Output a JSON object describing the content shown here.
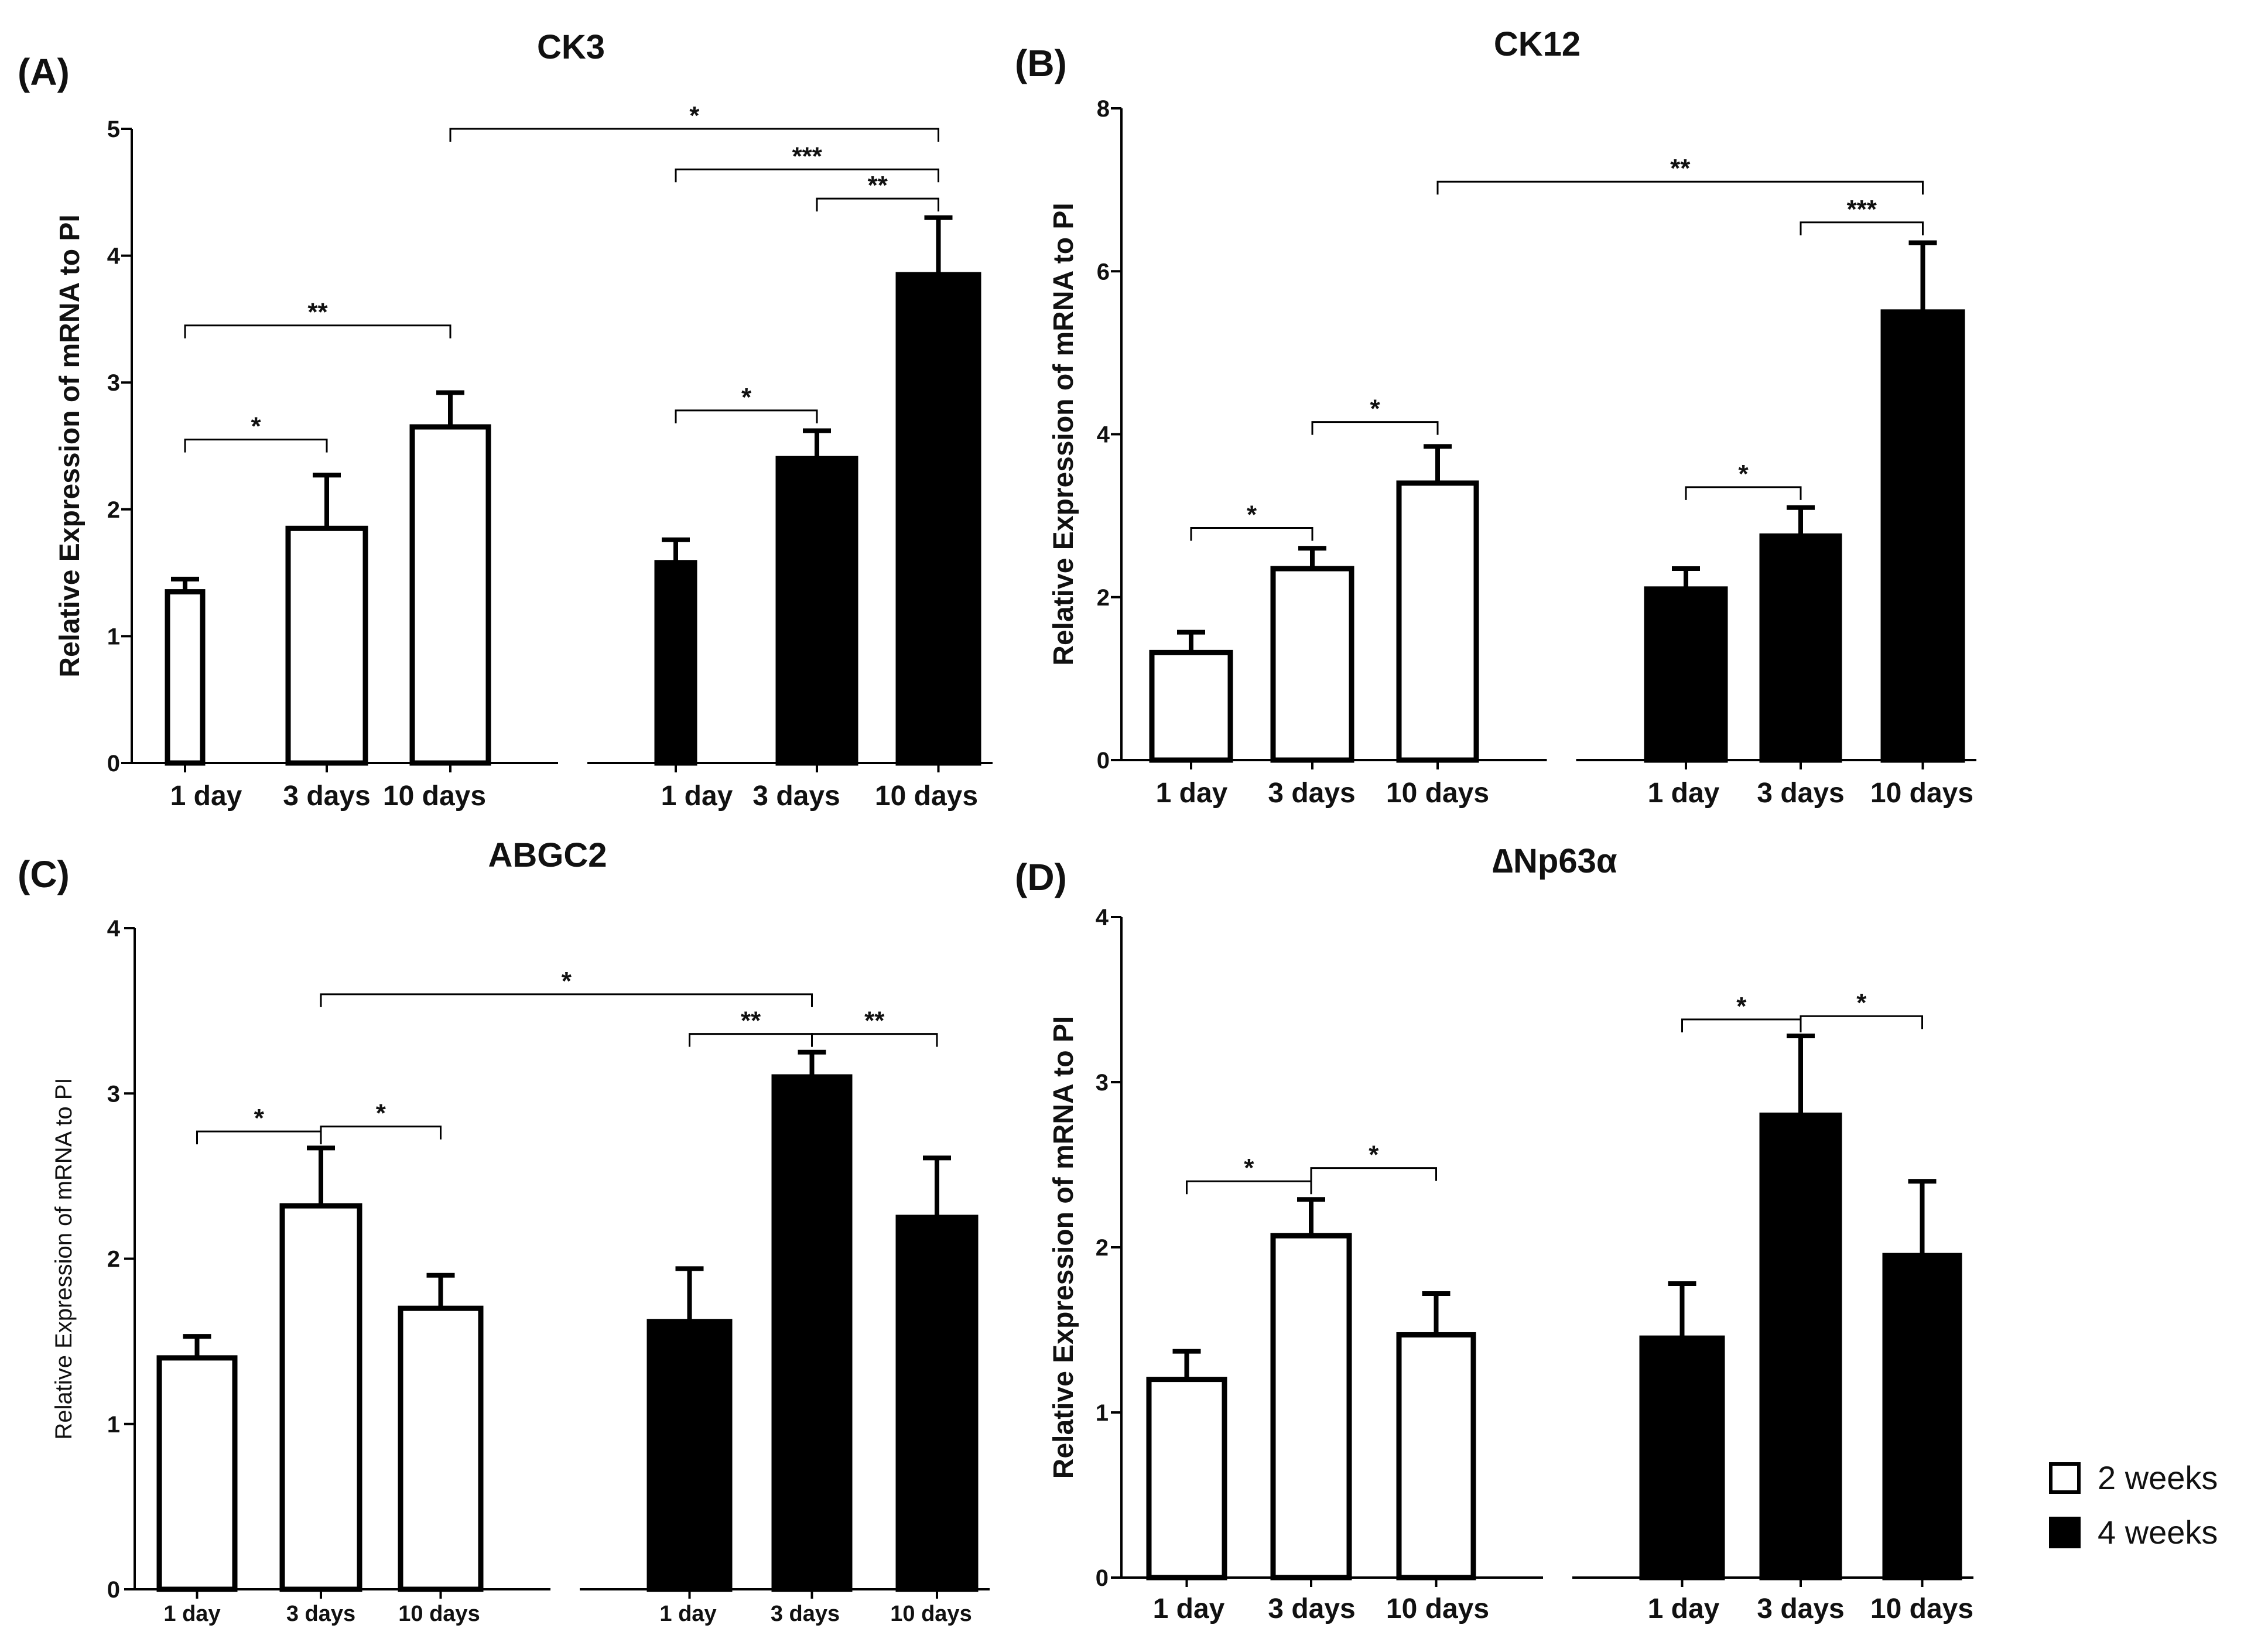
{
  "colors": {
    "two_weeks": "#ffffff",
    "four_weeks": "#000000",
    "stroke": "#000000"
  },
  "legend": [
    {
      "label": "2 weeks",
      "color": "#ffffff"
    },
    {
      "label": "4 weeks",
      "color": "#000000"
    }
  ],
  "chart_data": [
    {
      "panel": "(A)",
      "type": "bar",
      "title": "CK3",
      "ylabel": "Relative Expression of mRNA to PI",
      "xlabel": "",
      "ylim": [
        0,
        5
      ],
      "yticks": [
        0,
        1,
        2,
        3,
        4,
        5
      ],
      "categories": [
        "1 day",
        "3 days",
        "10 days"
      ],
      "series": [
        {
          "name": "2 weeks",
          "values": [
            1.35,
            1.85,
            2.65
          ],
          "errors": [
            0.1,
            0.42,
            0.27
          ]
        },
        {
          "name": "4 weeks",
          "values": [
            1.58,
            2.4,
            3.85
          ],
          "errors": [
            0.18,
            0.22,
            0.45
          ]
        }
      ],
      "significance": [
        {
          "from": [
            0,
            0
          ],
          "to": [
            0,
            2
          ],
          "label": "**",
          "level": 3.45
        },
        {
          "from": [
            0,
            0
          ],
          "to": [
            0,
            1
          ],
          "label": "*",
          "level": 2.55
        },
        {
          "from": [
            0,
            2
          ],
          "to": [
            1,
            2
          ],
          "label": "*",
          "level": 5.0
        },
        {
          "from": [
            1,
            0
          ],
          "to": [
            1,
            2
          ],
          "label": "***",
          "level": 4.68
        },
        {
          "from": [
            1,
            1
          ],
          "to": [
            1,
            2
          ],
          "label": "**",
          "level": 4.45
        },
        {
          "from": [
            1,
            0
          ],
          "to": [
            1,
            1
          ],
          "label": "*",
          "level": 2.78
        }
      ]
    },
    {
      "panel": "(B)",
      "type": "bar",
      "title": "CK12",
      "ylabel": "Relative Expression of mRNA to PI",
      "xlabel": "",
      "ylim": [
        0,
        8
      ],
      "yticks": [
        0,
        2,
        4,
        6,
        8
      ],
      "categories": [
        "1 day",
        "3 days",
        "10 days"
      ],
      "series": [
        {
          "name": "2 weeks",
          "values": [
            1.32,
            2.35,
            3.4
          ],
          "errors": [
            0.25,
            0.25,
            0.45
          ]
        },
        {
          "name": "4 weeks",
          "values": [
            2.1,
            2.75,
            5.5
          ],
          "errors": [
            0.25,
            0.35,
            0.85
          ]
        }
      ],
      "significance": [
        {
          "from": [
            0,
            0
          ],
          "to": [
            0,
            1
          ],
          "label": "*",
          "level": 2.85
        },
        {
          "from": [
            0,
            1
          ],
          "to": [
            0,
            2
          ],
          "label": "*",
          "level": 4.15
        },
        {
          "from": [
            0,
            2
          ],
          "to": [
            1,
            2
          ],
          "label": "**",
          "level": 7.1
        },
        {
          "from": [
            1,
            1
          ],
          "to": [
            1,
            2
          ],
          "label": "***",
          "level": 6.6
        },
        {
          "from": [
            1,
            0
          ],
          "to": [
            1,
            1
          ],
          "label": "*",
          "level": 3.35
        }
      ]
    },
    {
      "panel": "(C)",
      "type": "bar",
      "title": "ABGC2",
      "ylabel": "Relative Expression of mRNA to PI",
      "xlabel": "",
      "ylim": [
        0,
        4
      ],
      "yticks": [
        0,
        1,
        2,
        3,
        4
      ],
      "categories": [
        "1 day",
        "3 days",
        "10 days"
      ],
      "series": [
        {
          "name": "2 weeks",
          "values": [
            1.4,
            2.32,
            1.7
          ],
          "errors": [
            0.13,
            0.35,
            0.2
          ]
        },
        {
          "name": "4 weeks",
          "values": [
            1.62,
            3.1,
            2.25
          ],
          "errors": [
            0.32,
            0.15,
            0.36
          ]
        }
      ],
      "significance": [
        {
          "from": [
            0,
            0
          ],
          "to": [
            0,
            1
          ],
          "label": "*",
          "level": 2.77
        },
        {
          "from": [
            0,
            1
          ],
          "to": [
            0,
            2
          ],
          "label": "*",
          "level": 2.8
        },
        {
          "from": [
            0,
            1
          ],
          "to": [
            1,
            1
          ],
          "label": "*",
          "level": 3.6
        },
        {
          "from": [
            1,
            0
          ],
          "to": [
            1,
            1
          ],
          "label": "**",
          "level": 3.36
        },
        {
          "from": [
            1,
            1
          ],
          "to": [
            1,
            2
          ],
          "label": "**",
          "level": 3.36
        }
      ]
    },
    {
      "panel": "(D)",
      "type": "bar",
      "title": "∆Np63α",
      "ylabel": "Relative Expression of mRNA to PI",
      "xlabel": "",
      "ylim": [
        0,
        4
      ],
      "yticks": [
        0,
        1,
        2,
        3,
        4
      ],
      "categories": [
        "1 day",
        "3 days",
        "10 days"
      ],
      "series": [
        {
          "name": "2 weeks",
          "values": [
            1.2,
            2.07,
            1.47
          ],
          "errors": [
            0.17,
            0.22,
            0.25
          ]
        },
        {
          "name": "4 weeks",
          "values": [
            1.45,
            2.8,
            1.95
          ],
          "errors": [
            0.33,
            0.48,
            0.45
          ]
        }
      ],
      "significance": [
        {
          "from": [
            0,
            0
          ],
          "to": [
            0,
            1
          ],
          "label": "*",
          "level": 2.4
        },
        {
          "from": [
            0,
            1
          ],
          "to": [
            0,
            2
          ],
          "label": "*",
          "level": 2.48
        },
        {
          "from": [
            1,
            0
          ],
          "to": [
            1,
            1
          ],
          "label": "*",
          "level": 3.38
        },
        {
          "from": [
            1,
            1
          ],
          "to": [
            1,
            2
          ],
          "label": "*",
          "level": 3.4
        }
      ]
    }
  ]
}
